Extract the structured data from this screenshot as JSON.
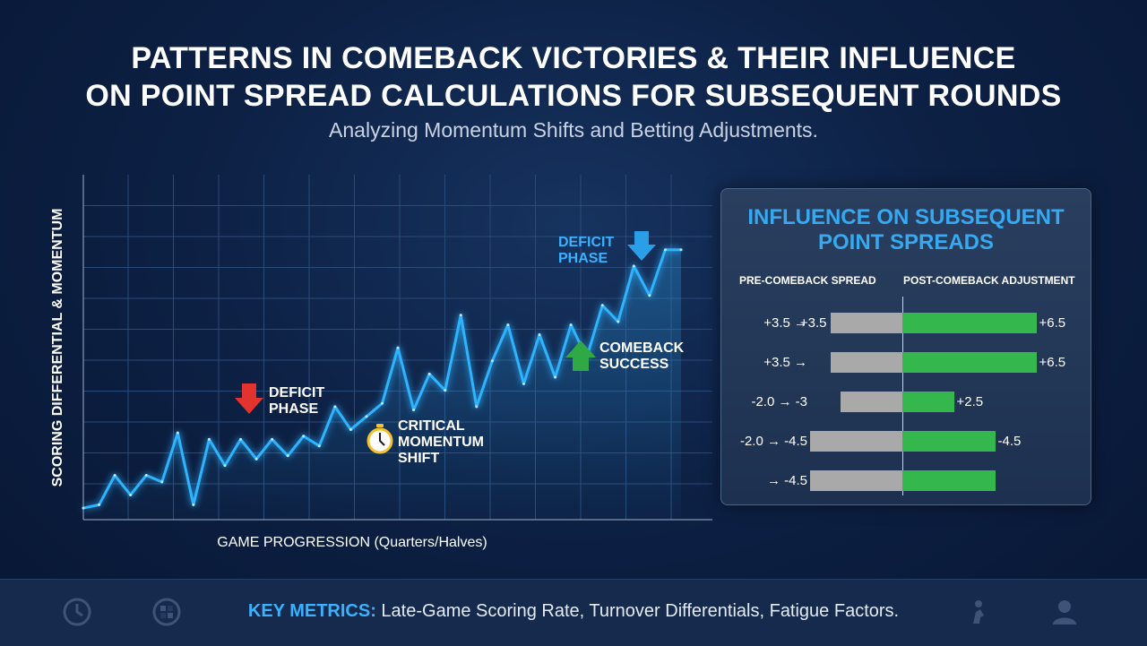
{
  "title": {
    "line1": "PATTERNS IN COMEBACK VICTORIES & THEIR INFLUENCE",
    "line2": "ON POINT SPREAD CALCULATIONS FOR SUBSEQUENT ROUNDS"
  },
  "subtitle": "Analyzing Momentum Shifts and Betting Adjustments.",
  "annotations": {
    "deficit_1": {
      "line1": "DEFICIT",
      "line2": "PHASE"
    },
    "critical": {
      "line1": "CRITICAL",
      "line2": "MOMENTUM",
      "line3": "SHIFT"
    },
    "comeback": {
      "line1": "COMEBACK",
      "line2": "SUCCESS"
    },
    "deficit_2": {
      "line1": "DEFICIT",
      "line2": "PHASE"
    }
  },
  "colors": {
    "line": "#2fb4ff",
    "accent_blue": "#35aaf2",
    "arrow_red": "#e2332f",
    "arrow_green": "#2fa845",
    "arrow_blue": "#2a9fe8",
    "bar_pre": "#a9a9a9",
    "bar_post": "#34b84e",
    "timer": "#f2c12e"
  },
  "chart_data": [
    {
      "type": "line",
      "title": "",
      "xlabel": "GAME PROGRESSION (Quarters/Halves)",
      "ylabel": "SCORING DIFFERENTIAL & MOMENTUM",
      "ylim": [
        0,
        100
      ],
      "grid": true,
      "x": [
        0,
        1,
        2,
        3,
        4,
        5,
        6,
        7,
        8,
        9,
        10,
        11,
        12,
        13,
        14,
        15,
        16,
        17,
        18,
        19,
        20,
        21,
        22,
        23,
        24,
        25,
        26,
        27,
        28,
        29,
        30,
        31,
        32,
        33,
        34,
        35,
        36,
        37,
        38
      ],
      "series": [
        {
          "values": [
            3,
            4,
            13,
            7,
            13,
            11,
            26,
            4,
            24,
            16,
            24,
            18,
            24,
            19,
            25,
            22,
            34,
            27,
            31,
            35,
            52,
            33,
            44,
            39,
            62,
            34,
            48,
            59,
            41,
            56,
            43,
            59,
            49,
            65,
            60,
            77,
            68,
            82,
            82
          ]
        }
      ]
    },
    {
      "type": "bar",
      "title": "INFLUENCE ON SUBSEQUENT POINT SPREADS",
      "column_headers": [
        "PRE-COMEBACK SPREAD",
        "POST-COMEBACK ADJUSTMENT"
      ],
      "rows": [
        {
          "row_label": "+3.5 →",
          "pre_label": "+3.5",
          "post_label": "+6.5",
          "pre_value": 3.5,
          "post_value": 6.5
        },
        {
          "row_label": "+3.5 →",
          "pre_label": "",
          "post_label": "+6.5",
          "pre_value": 3.5,
          "post_value": 6.5
        },
        {
          "row_label": "-2.0 → -3",
          "pre_label": "",
          "post_label": "+2.5",
          "pre_value": 3.0,
          "post_value": 2.5
        },
        {
          "row_label": "-2.0 → -4.5",
          "pre_label": "",
          "post_label": "-4.5",
          "pre_value": 4.5,
          "post_value": 4.5
        },
        {
          "row_label": "→ -4.5",
          "pre_label": "",
          "post_label": "",
          "pre_value": 4.5,
          "post_value": 4.5
        }
      ]
    }
  ],
  "footer": {
    "label": "KEY METRICS:",
    "text": " Late-Game Scoring Rate, Turnover Differentials, Fatigue Factors.",
    "icons": [
      "clock-icon",
      "ball-icon",
      "player-icon",
      "user-icon"
    ]
  }
}
